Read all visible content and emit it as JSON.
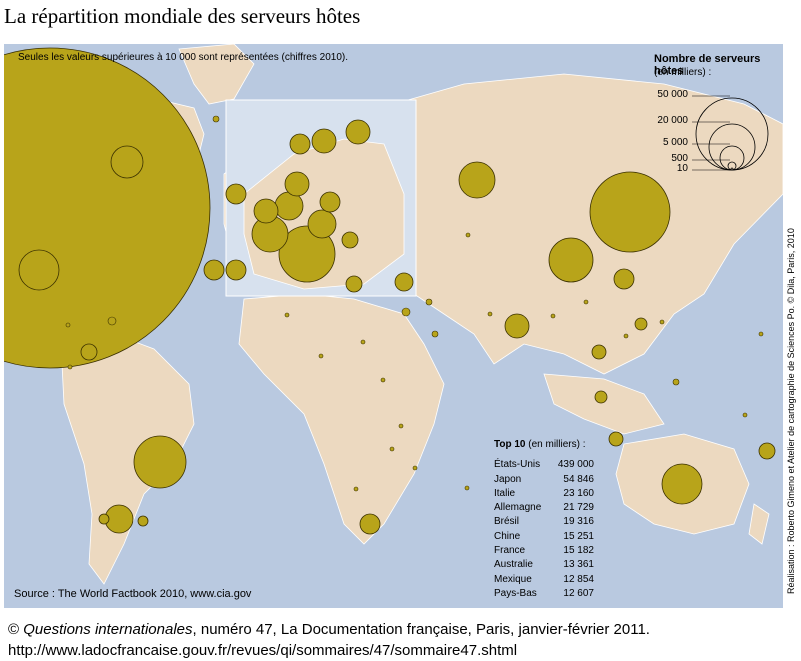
{
  "title": "La répartition mondiale des serveurs hôtes",
  "note": "Seules les valeurs supérieures à 10 000 sont représentées (chiffres 2010).",
  "source": "Source : The World Factbook 2010, www.cia.gov",
  "legend": {
    "title": "Nombre de serveurs hôtes",
    "subtitle": "(en milliers) :",
    "levels": [
      "50 000",
      "20 000",
      "5 000",
      "500",
      "10"
    ]
  },
  "top10": {
    "title": "Top 10",
    "unit": "(en milliers) :",
    "rows": [
      {
        "country": "États-Unis",
        "value": "439 000"
      },
      {
        "country": "Japon",
        "value": "54 846"
      },
      {
        "country": "Italie",
        "value": "23 160"
      },
      {
        "country": "Allemagne",
        "value": "21 729"
      },
      {
        "country": "Brésil",
        "value": "19 316"
      },
      {
        "country": "Chine",
        "value": "15 251"
      },
      {
        "country": "France",
        "value": "15 182"
      },
      {
        "country": "Australie",
        "value": "13 361"
      },
      {
        "country": "Mexique",
        "value": "12 854"
      },
      {
        "country": "Pays-Bas",
        "value": "12 607"
      }
    ]
  },
  "credit": "Réalisation : Roberto Gimeno et Atelier de cartographie de Sciences Po. © Dila, Paris, 2010",
  "footer": {
    "copyright": "©",
    "publication": "Questions internationales",
    "details": ", numéro 47, La Documentation française, Paris, janvier-février 2011.",
    "url": "http://www.ladocfrancaise.gouv.fr/revues/qi/sommaires/47/sommaire47.shtml"
  },
  "colors": {
    "ocean": "#b9c9e0",
    "land": "#ecd9c0",
    "bubble": "#b8a41a",
    "inset": "#d7e1ee"
  }
}
